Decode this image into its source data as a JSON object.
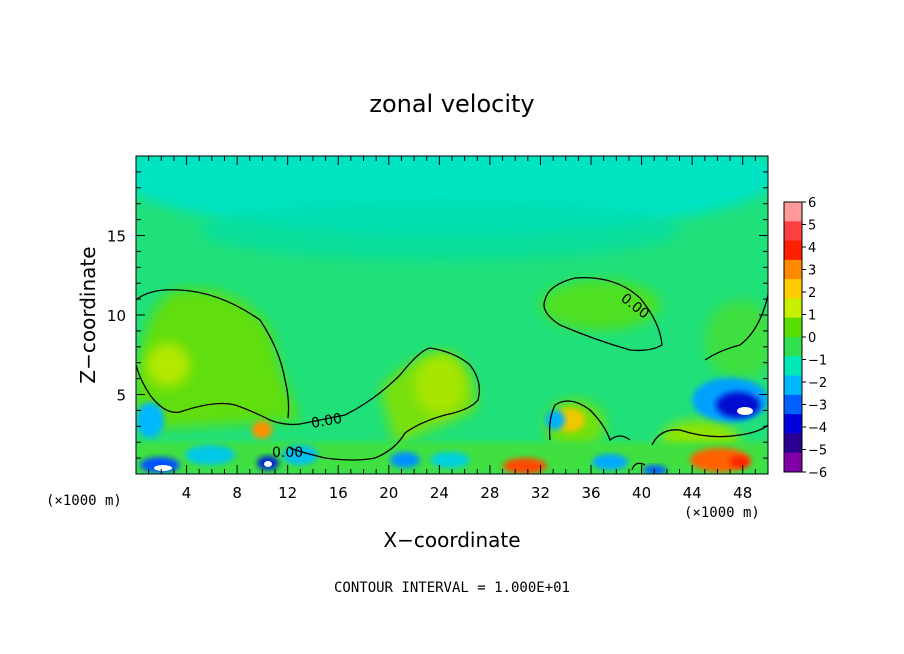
{
  "chart_data": {
    "type": "heatmap",
    "title": "zonal velocity",
    "xlabel": "X−coordinate",
    "ylabel": "Z−coordinate",
    "x_unit_label": "(×1000 m)",
    "x_unit_label_right": "(×1000 m)",
    "xlim": [
      0,
      50
    ],
    "ylim": [
      0,
      20
    ],
    "x_ticks": [
      4,
      8,
      12,
      16,
      20,
      24,
      28,
      32,
      36,
      40,
      44,
      48
    ],
    "x_tick_labels": [
      "4",
      "8",
      "12",
      "16",
      "20",
      "24",
      "28",
      "32",
      "36",
      "40",
      "44",
      "48"
    ],
    "y_ticks": [
      5,
      10,
      15
    ],
    "y_tick_labels": [
      "5",
      "10",
      "15"
    ],
    "colorbar": {
      "min": -6,
      "max": 6,
      "levels": [
        6,
        5,
        4,
        3,
        2,
        1,
        0,
        -1,
        -2,
        -3,
        -4,
        -5,
        -6
      ],
      "level_labels": [
        "6",
        "5",
        "4",
        "3",
        "2",
        "1",
        "0",
        "−1",
        "−2",
        "−3",
        "−4",
        "−5",
        "−6"
      ],
      "colors": [
        "#ff9a9a",
        "#ff4040",
        "#ff2000",
        "#ff8a00",
        "#ffcc00",
        "#c8ee00",
        "#5ade00",
        "#30e050",
        "#00e8b8",
        "#00b8ff",
        "#0060ff",
        "#0000dd",
        "#2a0090",
        "#8000a8"
      ]
    },
    "contour_labels": [
      "0.00",
      "0.00",
      "0.00"
    ],
    "footer": "CONTOUR INTERVAL = 1.000E+01"
  }
}
